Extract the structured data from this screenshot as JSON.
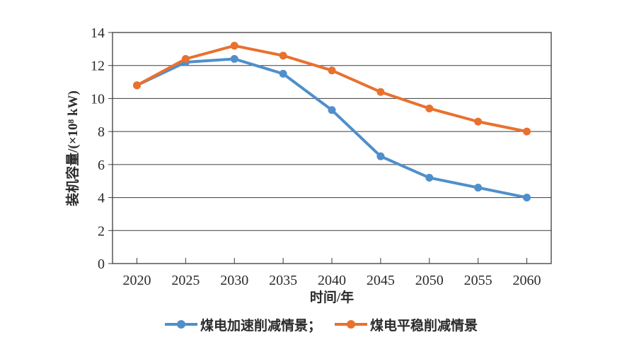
{
  "chart_data": {
    "type": "line",
    "categories": [
      "2020",
      "2025",
      "2030",
      "2035",
      "2040",
      "2045",
      "2050",
      "2055",
      "2060"
    ],
    "series": [
      {
        "name": "煤电加速削减情景；",
        "color": "#4F8FCB",
        "values": [
          10.8,
          12.2,
          12.4,
          11.5,
          9.3,
          6.5,
          5.2,
          4.6,
          4.0
        ]
      },
      {
        "name": "煤电平稳削减情景",
        "color": "#E8712F",
        "values": [
          10.8,
          12.4,
          13.2,
          12.6,
          11.7,
          10.4,
          9.4,
          8.6,
          8.0
        ]
      }
    ],
    "title": "",
    "xlabel": "时间/年",
    "ylabel": "装机容量/(×10⁸ kW)",
    "ylim": [
      0,
      14
    ],
    "ytick_step": 2,
    "grid": true,
    "legend_position": "bottom",
    "axis_color": "#3c3c3c",
    "line_width": 4,
    "marker_radius": 5.5
  }
}
